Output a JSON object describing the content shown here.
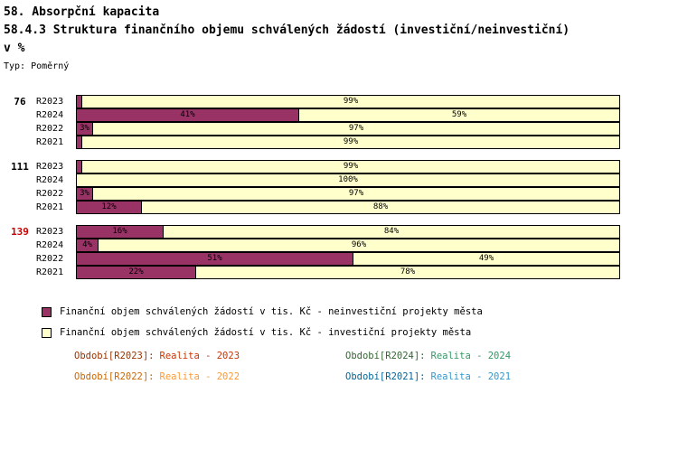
{
  "title_lines": [
    "58. Absorpční kapacita",
    "58.4.3 Struktura finančního objemu schválených žádostí (investiční/neinvestiční)",
    "v %"
  ],
  "type_label": "Typ: Poměrný",
  "chart_data": {
    "type": "bar",
    "orientation": "horizontal",
    "stacked": true,
    "unit": "%",
    "xlim": [
      0,
      100
    ],
    "series_names": [
      "neinvesticni",
      "investicni"
    ],
    "colors": {
      "neinvesticni": "#993366",
      "investicni": "#FFFFCC"
    },
    "groups": [
      {
        "label": "76",
        "label_color": "#000000",
        "rows": [
          {
            "period": "R2023",
            "values": [
              1,
              99
            ],
            "labels": [
              "",
              "99%"
            ]
          },
          {
            "period": "R2024",
            "values": [
              41,
              59
            ],
            "labels": [
              "41%",
              "59%"
            ]
          },
          {
            "period": "R2022",
            "values": [
              3,
              97
            ],
            "labels": [
              "3%",
              "97%"
            ]
          },
          {
            "period": "R2021",
            "values": [
              1,
              99
            ],
            "labels": [
              "",
              "99%"
            ]
          }
        ]
      },
      {
        "label": "111",
        "label_color": "#000000",
        "rows": [
          {
            "period": "R2023",
            "values": [
              1,
              99
            ],
            "labels": [
              "",
              "99%"
            ]
          },
          {
            "period": "R2024",
            "values": [
              0,
              100
            ],
            "labels": [
              "",
              "100%"
            ]
          },
          {
            "period": "R2022",
            "values": [
              3,
              97
            ],
            "labels": [
              "3%",
              "97%"
            ]
          },
          {
            "period": "R2021",
            "values": [
              12,
              88
            ],
            "labels": [
              "12%",
              "88%"
            ]
          }
        ]
      },
      {
        "label": "139",
        "label_color": "#CC0000",
        "rows": [
          {
            "period": "R2023",
            "values": [
              16,
              84
            ],
            "labels": [
              "16%",
              "84%"
            ]
          },
          {
            "period": "R2024",
            "values": [
              4,
              96
            ],
            "labels": [
              "4%",
              "96%"
            ]
          },
          {
            "period": "R2022",
            "values": [
              51,
              49
            ],
            "labels": [
              "51%",
              "49%"
            ]
          },
          {
            "period": "R2021",
            "values": [
              22,
              78
            ],
            "labels": [
              "22%",
              "78%"
            ]
          }
        ]
      }
    ]
  },
  "legend": [
    {
      "label": "Finanční objem schválených žádostí v tis. Kč - neinvestiční projekty města",
      "color": "#993366"
    },
    {
      "label": "Finanční objem schválených žádostí v tis. Kč - investiční projekty města",
      "color": "#FFFFCC"
    }
  ],
  "periods": [
    {
      "prefix": "Období[R2023]:",
      "value": "Realita - 2023",
      "prefix_color": "#993300",
      "value_color": "#CC3300"
    },
    {
      "prefix": "Období[R2024]:",
      "value": "Realita - 2024",
      "prefix_color": "#336633",
      "value_color": "#339966"
    },
    {
      "prefix": "Období[R2022]:",
      "value": "Realita - 2022",
      "prefix_color": "#CC6600",
      "value_color": "#FF9933"
    },
    {
      "prefix": "Období[R2021]:",
      "value": "Realita - 2021",
      "prefix_color": "#006699",
      "value_color": "#3399CC"
    }
  ]
}
